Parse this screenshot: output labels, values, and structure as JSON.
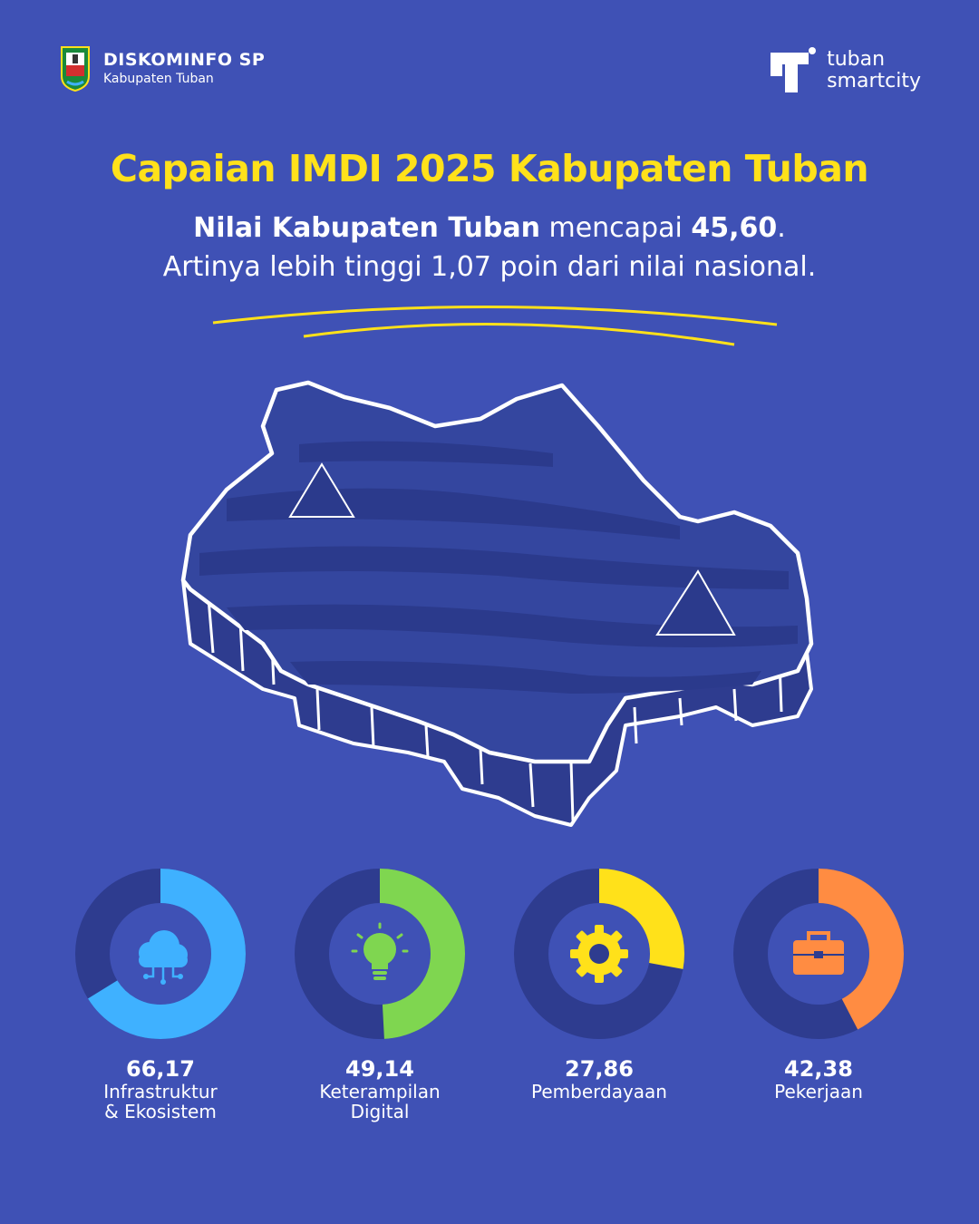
{
  "header": {
    "left_title": "DISKOMINFO SP",
    "left_subtitle": "Kabupaten Tuban",
    "right_line1": "tuban",
    "right_line2": "smartcity"
  },
  "title": "Capaian IMDI 2025 Kabupaten Tuban",
  "subtitle": {
    "bold1": "Nilai Kabupaten Tuban",
    "text1": " mencapai ",
    "bold2": "45,60",
    "text2": ".",
    "line2": "Artinya lebih tinggi 1,07 poin dari nilai nasional."
  },
  "colors": {
    "background": "#3f51b5",
    "title": "#ffe11a",
    "track": "#2e3c8f"
  },
  "chart_data": {
    "type": "donut",
    "max": 100,
    "items": [
      {
        "value": 66.17,
        "display": "66,17",
        "label_lines": [
          "Infrastruktur",
          "& Ekosistem"
        ],
        "color": "#3fb1ff",
        "icon": "cloud-network-icon"
      },
      {
        "value": 49.14,
        "display": "49,14",
        "label_lines": [
          "Keterampilan",
          "Digital"
        ],
        "color": "#7fd650",
        "icon": "lightbulb-icon"
      },
      {
        "value": 27.86,
        "display": "27,86",
        "label_lines": [
          "Pemberdayaan"
        ],
        "color": "#ffe11a",
        "icon": "gear-icon"
      },
      {
        "value": 42.38,
        "display": "42,38",
        "label_lines": [
          "Pekerjaan"
        ],
        "color": "#ff8c42",
        "icon": "briefcase-icon"
      }
    ]
  }
}
